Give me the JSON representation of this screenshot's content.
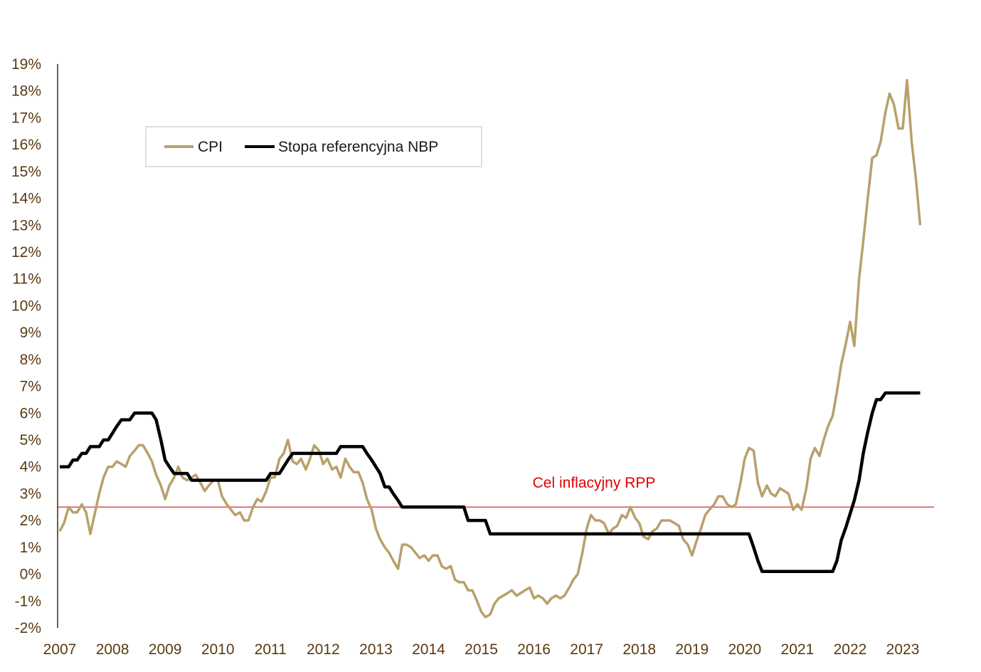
{
  "chart_data": {
    "type": "line",
    "title": "",
    "xlabel": "",
    "ylabel": "",
    "ylim": [
      -2,
      19
    ],
    "xlim": [
      2007,
      2023.58
    ],
    "y_ticks": [
      -2,
      -1,
      0,
      1,
      2,
      3,
      4,
      5,
      6,
      7,
      8,
      9,
      10,
      11,
      12,
      13,
      14,
      15,
      16,
      17,
      18,
      19
    ],
    "y_tick_labels": [
      "-2%",
      "-1%",
      "0%",
      "1%",
      "2%",
      "3%",
      "4%",
      "5%",
      "6%",
      "7%",
      "8%",
      "9%",
      "10%",
      "11%",
      "12%",
      "13%",
      "14%",
      "15%",
      "16%",
      "17%",
      "18%",
      "19%"
    ],
    "x_ticks": [
      2007,
      2008,
      2009,
      2010,
      2011,
      2012,
      2013,
      2014,
      2015,
      2016,
      2017,
      2018,
      2019,
      2020,
      2021,
      2022,
      2023
    ],
    "x_tick_labels": [
      "2007",
      "2008",
      "2009",
      "2010",
      "2011",
      "2012",
      "2013",
      "2014",
      "2015",
      "2016",
      "2017",
      "2018",
      "2019",
      "2020",
      "2021",
      "2022",
      "2023"
    ],
    "grid": false,
    "legend_position": "top-left",
    "series": [
      {
        "name": "CPI",
        "color": "#b9a06b",
        "points": [
          [
            2007.0,
            1.6
          ],
          [
            2007.08,
            1.9
          ],
          [
            2007.17,
            2.5
          ],
          [
            2007.25,
            2.3
          ],
          [
            2007.33,
            2.3
          ],
          [
            2007.42,
            2.6
          ],
          [
            2007.5,
            2.3
          ],
          [
            2007.58,
            1.5
          ],
          [
            2007.67,
            2.3
          ],
          [
            2007.75,
            3.0
          ],
          [
            2007.83,
            3.6
          ],
          [
            2007.92,
            4.0
          ],
          [
            2008.0,
            4.0
          ],
          [
            2008.08,
            4.2
          ],
          [
            2008.17,
            4.1
          ],
          [
            2008.25,
            4.0
          ],
          [
            2008.33,
            4.4
          ],
          [
            2008.42,
            4.6
          ],
          [
            2008.5,
            4.8
          ],
          [
            2008.58,
            4.8
          ],
          [
            2008.67,
            4.5
          ],
          [
            2008.75,
            4.2
          ],
          [
            2008.83,
            3.7
          ],
          [
            2008.92,
            3.3
          ],
          [
            2009.0,
            2.8
          ],
          [
            2009.08,
            3.3
          ],
          [
            2009.17,
            3.6
          ],
          [
            2009.25,
            4.0
          ],
          [
            2009.33,
            3.6
          ],
          [
            2009.42,
            3.5
          ],
          [
            2009.5,
            3.6
          ],
          [
            2009.58,
            3.7
          ],
          [
            2009.67,
            3.4
          ],
          [
            2009.75,
            3.1
          ],
          [
            2009.83,
            3.3
          ],
          [
            2009.92,
            3.5
          ],
          [
            2010.0,
            3.5
          ],
          [
            2010.08,
            2.9
          ],
          [
            2010.17,
            2.6
          ],
          [
            2010.25,
            2.4
          ],
          [
            2010.33,
            2.2
          ],
          [
            2010.42,
            2.3
          ],
          [
            2010.5,
            2.0
          ],
          [
            2010.58,
            2.0
          ],
          [
            2010.67,
            2.5
          ],
          [
            2010.75,
            2.8
          ],
          [
            2010.83,
            2.7
          ],
          [
            2010.92,
            3.1
          ],
          [
            2011.0,
            3.6
          ],
          [
            2011.08,
            3.6
          ],
          [
            2011.17,
            4.3
          ],
          [
            2011.25,
            4.5
          ],
          [
            2011.33,
            5.0
          ],
          [
            2011.42,
            4.2
          ],
          [
            2011.5,
            4.1
          ],
          [
            2011.58,
            4.3
          ],
          [
            2011.67,
            3.9
          ],
          [
            2011.75,
            4.3
          ],
          [
            2011.83,
            4.8
          ],
          [
            2011.92,
            4.6
          ],
          [
            2012.0,
            4.1
          ],
          [
            2012.08,
            4.3
          ],
          [
            2012.17,
            3.9
          ],
          [
            2012.25,
            4.0
          ],
          [
            2012.33,
            3.6
          ],
          [
            2012.42,
            4.3
          ],
          [
            2012.5,
            4.0
          ],
          [
            2012.58,
            3.8
          ],
          [
            2012.67,
            3.8
          ],
          [
            2012.75,
            3.4
          ],
          [
            2012.83,
            2.8
          ],
          [
            2012.92,
            2.4
          ],
          [
            2013.0,
            1.7
          ],
          [
            2013.08,
            1.3
          ],
          [
            2013.17,
            1.0
          ],
          [
            2013.25,
            0.8
          ],
          [
            2013.33,
            0.5
          ],
          [
            2013.42,
            0.2
          ],
          [
            2013.5,
            1.1
          ],
          [
            2013.58,
            1.1
          ],
          [
            2013.67,
            1.0
          ],
          [
            2013.75,
            0.8
          ],
          [
            2013.83,
            0.6
          ],
          [
            2013.92,
            0.7
          ],
          [
            2014.0,
            0.5
          ],
          [
            2014.08,
            0.7
          ],
          [
            2014.17,
            0.7
          ],
          [
            2014.25,
            0.3
          ],
          [
            2014.33,
            0.2
          ],
          [
            2014.42,
            0.3
          ],
          [
            2014.5,
            -0.2
          ],
          [
            2014.58,
            -0.3
          ],
          [
            2014.67,
            -0.3
          ],
          [
            2014.75,
            -0.6
          ],
          [
            2014.83,
            -0.6
          ],
          [
            2014.92,
            -1.0
          ],
          [
            2015.0,
            -1.4
          ],
          [
            2015.08,
            -1.6
          ],
          [
            2015.17,
            -1.5
          ],
          [
            2015.25,
            -1.1
          ],
          [
            2015.33,
            -0.9
          ],
          [
            2015.42,
            -0.8
          ],
          [
            2015.5,
            -0.7
          ],
          [
            2015.58,
            -0.6
          ],
          [
            2015.67,
            -0.8
          ],
          [
            2015.75,
            -0.7
          ],
          [
            2015.83,
            -0.6
          ],
          [
            2015.92,
            -0.5
          ],
          [
            2016.0,
            -0.9
          ],
          [
            2016.08,
            -0.8
          ],
          [
            2016.17,
            -0.9
          ],
          [
            2016.25,
            -1.1
          ],
          [
            2016.33,
            -0.9
          ],
          [
            2016.42,
            -0.8
          ],
          [
            2016.5,
            -0.9
          ],
          [
            2016.58,
            -0.8
          ],
          [
            2016.67,
            -0.5
          ],
          [
            2016.75,
            -0.2
          ],
          [
            2016.83,
            0.0
          ],
          [
            2016.92,
            0.8
          ],
          [
            2017.0,
            1.7
          ],
          [
            2017.08,
            2.2
          ],
          [
            2017.17,
            2.0
          ],
          [
            2017.25,
            2.0
          ],
          [
            2017.33,
            1.9
          ],
          [
            2017.42,
            1.5
          ],
          [
            2017.5,
            1.7
          ],
          [
            2017.58,
            1.8
          ],
          [
            2017.67,
            2.2
          ],
          [
            2017.75,
            2.1
          ],
          [
            2017.83,
            2.5
          ],
          [
            2017.92,
            2.1
          ],
          [
            2018.0,
            1.9
          ],
          [
            2018.08,
            1.4
          ],
          [
            2018.17,
            1.3
          ],
          [
            2018.25,
            1.6
          ],
          [
            2018.33,
            1.7
          ],
          [
            2018.42,
            2.0
          ],
          [
            2018.5,
            2.0
          ],
          [
            2018.58,
            2.0
          ],
          [
            2018.67,
            1.9
          ],
          [
            2018.75,
            1.8
          ],
          [
            2018.83,
            1.3
          ],
          [
            2018.92,
            1.1
          ],
          [
            2019.0,
            0.7
          ],
          [
            2019.08,
            1.2
          ],
          [
            2019.17,
            1.7
          ],
          [
            2019.25,
            2.2
          ],
          [
            2019.33,
            2.4
          ],
          [
            2019.42,
            2.6
          ],
          [
            2019.5,
            2.9
          ],
          [
            2019.58,
            2.9
          ],
          [
            2019.67,
            2.6
          ],
          [
            2019.75,
            2.5
          ],
          [
            2019.83,
            2.6
          ],
          [
            2019.92,
            3.4
          ],
          [
            2020.0,
            4.3
          ],
          [
            2020.08,
            4.7
          ],
          [
            2020.17,
            4.6
          ],
          [
            2020.25,
            3.4
          ],
          [
            2020.33,
            2.9
          ],
          [
            2020.42,
            3.3
          ],
          [
            2020.5,
            3.0
          ],
          [
            2020.58,
            2.9
          ],
          [
            2020.67,
            3.2
          ],
          [
            2020.75,
            3.1
          ],
          [
            2020.83,
            3.0
          ],
          [
            2020.92,
            2.4
          ],
          [
            2021.0,
            2.6
          ],
          [
            2021.08,
            2.4
          ],
          [
            2021.17,
            3.2
          ],
          [
            2021.25,
            4.3
          ],
          [
            2021.33,
            4.7
          ],
          [
            2021.42,
            4.4
          ],
          [
            2021.5,
            5.0
          ],
          [
            2021.58,
            5.5
          ],
          [
            2021.67,
            5.9
          ],
          [
            2021.75,
            6.8
          ],
          [
            2021.83,
            7.8
          ],
          [
            2021.92,
            8.6
          ],
          [
            2022.0,
            9.4
          ],
          [
            2022.08,
            8.5
          ],
          [
            2022.17,
            11.0
          ],
          [
            2022.25,
            12.4
          ],
          [
            2022.33,
            13.9
          ],
          [
            2022.42,
            15.5
          ],
          [
            2022.5,
            15.6
          ],
          [
            2022.58,
            16.1
          ],
          [
            2022.67,
            17.2
          ],
          [
            2022.75,
            17.9
          ],
          [
            2022.83,
            17.5
          ],
          [
            2022.92,
            16.6
          ],
          [
            2023.0,
            16.6
          ],
          [
            2023.08,
            18.4
          ],
          [
            2023.17,
            16.1
          ],
          [
            2023.25,
            14.7
          ],
          [
            2023.33,
            13.0
          ]
        ]
      },
      {
        "name": "Stopa referencyjna NBP",
        "color": "#000000",
        "points": [
          [
            2007.0,
            4.0
          ],
          [
            2007.17,
            4.0
          ],
          [
            2007.25,
            4.25
          ],
          [
            2007.33,
            4.25
          ],
          [
            2007.42,
            4.5
          ],
          [
            2007.5,
            4.5
          ],
          [
            2007.58,
            4.75
          ],
          [
            2007.75,
            4.75
          ],
          [
            2007.83,
            5.0
          ],
          [
            2007.92,
            5.0
          ],
          [
            2008.0,
            5.25
          ],
          [
            2008.08,
            5.5
          ],
          [
            2008.17,
            5.75
          ],
          [
            2008.33,
            5.75
          ],
          [
            2008.42,
            6.0
          ],
          [
            2008.75,
            6.0
          ],
          [
            2008.83,
            5.75
          ],
          [
            2008.92,
            5.0
          ],
          [
            2009.0,
            4.25
          ],
          [
            2009.08,
            4.0
          ],
          [
            2009.17,
            3.75
          ],
          [
            2009.42,
            3.75
          ],
          [
            2009.5,
            3.5
          ],
          [
            2010.0,
            3.5
          ],
          [
            2010.5,
            3.5
          ],
          [
            2010.83,
            3.5
          ],
          [
            2010.92,
            3.5
          ],
          [
            2011.0,
            3.75
          ],
          [
            2011.17,
            3.75
          ],
          [
            2011.25,
            4.0
          ],
          [
            2011.33,
            4.25
          ],
          [
            2011.42,
            4.5
          ],
          [
            2011.92,
            4.5
          ],
          [
            2012.0,
            4.5
          ],
          [
            2012.25,
            4.5
          ],
          [
            2012.33,
            4.75
          ],
          [
            2012.75,
            4.75
          ],
          [
            2012.83,
            4.5
          ],
          [
            2012.92,
            4.25
          ],
          [
            2013.0,
            4.0
          ],
          [
            2013.08,
            3.75
          ],
          [
            2013.17,
            3.25
          ],
          [
            2013.25,
            3.25
          ],
          [
            2013.33,
            3.0
          ],
          [
            2013.42,
            2.75
          ],
          [
            2013.5,
            2.5
          ],
          [
            2014.0,
            2.5
          ],
          [
            2014.5,
            2.5
          ],
          [
            2014.67,
            2.5
          ],
          [
            2014.75,
            2.0
          ],
          [
            2015.0,
            2.0
          ],
          [
            2015.08,
            2.0
          ],
          [
            2015.17,
            1.5
          ],
          [
            2016.0,
            1.5
          ],
          [
            2017.0,
            1.5
          ],
          [
            2018.0,
            1.5
          ],
          [
            2019.0,
            1.5
          ],
          [
            2020.0,
            1.5
          ],
          [
            2020.08,
            1.5
          ],
          [
            2020.17,
            1.0
          ],
          [
            2020.25,
            0.5
          ],
          [
            2020.33,
            0.1
          ],
          [
            2021.0,
            0.1
          ],
          [
            2021.67,
            0.1
          ],
          [
            2021.75,
            0.5
          ],
          [
            2021.83,
            1.25
          ],
          [
            2021.92,
            1.75
          ],
          [
            2022.0,
            2.25
          ],
          [
            2022.08,
            2.75
          ],
          [
            2022.17,
            3.5
          ],
          [
            2022.25,
            4.5
          ],
          [
            2022.33,
            5.25
          ],
          [
            2022.42,
            6.0
          ],
          [
            2022.5,
            6.5
          ],
          [
            2022.58,
            6.5
          ],
          [
            2022.67,
            6.75
          ],
          [
            2023.0,
            6.75
          ],
          [
            2023.33,
            6.75
          ]
        ]
      }
    ],
    "reference_line": {
      "value": 2.5,
      "color": "#c00000"
    },
    "annotation": {
      "text": "Cel inflacyjny RPP",
      "color": "#e00000"
    }
  }
}
